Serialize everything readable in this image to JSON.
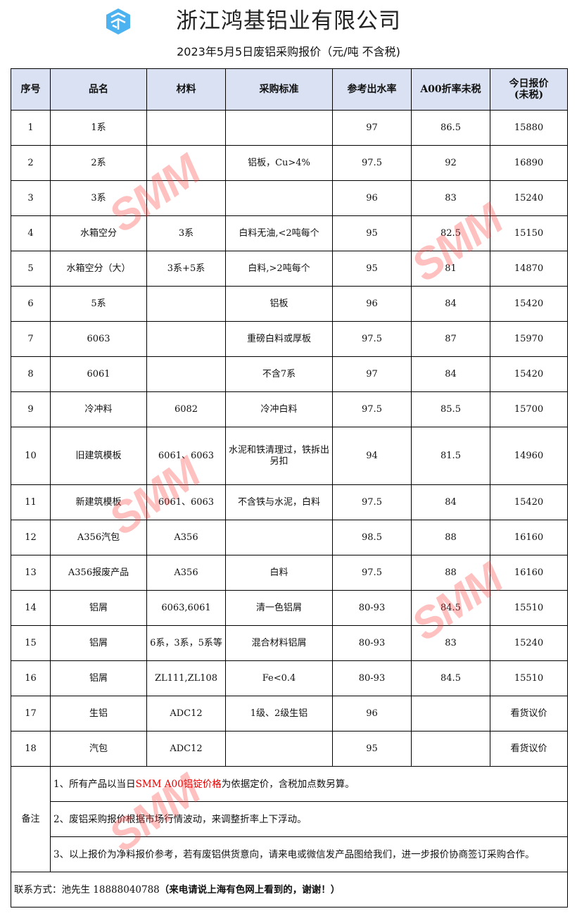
{
  "header": {
    "company": "浙江鸿基铝业有限公司",
    "subtitle": "2023年5月5日废铝采购报价（元/吨 不含税)",
    "logo_color": "#4db3f0"
  },
  "table": {
    "columns": [
      "序号",
      "品名",
      "材料",
      "采购标准",
      "参考出水率",
      "A00折率未税",
      "今日报价\n(未税)"
    ],
    "rows": [
      [
        "1",
        "1系",
        "",
        "",
        "97",
        "86.5",
        "15880"
      ],
      [
        "2",
        "2系",
        "",
        "铝板，Cu>4%",
        "97.5",
        "92",
        "16890"
      ],
      [
        "3",
        "3系",
        "",
        "",
        "96",
        "83",
        "15240"
      ],
      [
        "4",
        "水箱空分",
        "3系",
        "白料无油,<2吨每个",
        "95",
        "82.5",
        "15150"
      ],
      [
        "5",
        "水箱空分（大）",
        "3系+5系",
        "白料,>2吨每个",
        "95",
        "81",
        "14870"
      ],
      [
        "6",
        "5系",
        "",
        "铝板",
        "96",
        "84",
        "15420"
      ],
      [
        "7",
        "6063",
        "",
        "重磅白料或厚板",
        "97.5",
        "87",
        "15970"
      ],
      [
        "8",
        "6061",
        "",
        "不含7系",
        "97",
        "84",
        "15420"
      ],
      [
        "9",
        "冷冲料",
        "6082",
        "冷冲白料",
        "97.5",
        "85.5",
        "15700"
      ],
      [
        "10",
        "旧建筑模板",
        "6061、6063",
        "水泥和铁清理过，铁拆出另扣",
        "94",
        "81.5",
        "14960"
      ],
      [
        "11",
        "新建筑模板",
        "6061、6063",
        "不含铁与水泥，白料",
        "97.5",
        "84",
        "15420"
      ],
      [
        "12",
        "A356汽包",
        "A356",
        "",
        "98.5",
        "88",
        "16160"
      ],
      [
        "13",
        "A356报废产品",
        "A356",
        "白料",
        "97.5",
        "88",
        "16160"
      ],
      [
        "14",
        "铝屑",
        "6063,6061",
        "清一色铝屑",
        "80-93",
        "84.5",
        "15510"
      ],
      [
        "15",
        "铝屑",
        "6系，3系，5系等",
        "混合材料铝屑",
        "80-93",
        "83",
        "15240"
      ],
      [
        "16",
        "铝屑",
        "ZL111,ZL108",
        "Fe<0.4",
        "80-93",
        "84.5",
        "15510"
      ],
      [
        "17",
        "生铝",
        "ADC12",
        "1级、2级生铝",
        "96",
        "",
        "看货议价"
      ],
      [
        "18",
        "汽包",
        "ADC12",
        "",
        "95",
        "",
        "看货议价"
      ]
    ]
  },
  "notes": {
    "label": "备注",
    "n1_pre": "1、所有产品以当日",
    "n1_red": "SMM A00铝锭价格",
    "n1_post": "为依据定价，含税加点数另算。",
    "n2": "2、废铝采购报价根据市场行情波动，来调整折率上下浮动。",
    "n3": "3、以上报价为净料报价参考，若有废铝供货意向，请来电或微信发产品图给我们，进一步报价协商签订采购合作。"
  },
  "contact": {
    "text": "联系方式：池先生 18888040788",
    "bold": "（来电请说上海有色网上看到的，谢谢！）"
  },
  "watermark": {
    "text": "SMM",
    "color": "#ff3c3c"
  }
}
